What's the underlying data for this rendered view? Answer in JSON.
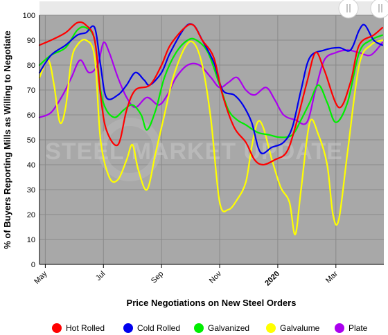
{
  "chart_data": {
    "type": "line",
    "title": "",
    "xlabel": "Price Negotiations on New Steel Orders",
    "ylabel": "% of Buyers Reporting Mills as Willing to Negotiate",
    "ylim": [
      0,
      100
    ],
    "yticks": [
      0,
      10,
      20,
      30,
      40,
      50,
      60,
      70,
      80,
      90,
      100
    ],
    "xlim": [
      -0.2,
      11.65
    ],
    "xticks": [
      {
        "x": 0,
        "label": "May"
      },
      {
        "x": 2,
        "label": "Jul"
      },
      {
        "x": 4,
        "label": "Sep"
      },
      {
        "x": 6,
        "label": "Nov"
      },
      {
        "x": 8,
        "label": "2020"
      },
      {
        "x": 10,
        "label": "Mar"
      }
    ],
    "grid": true,
    "legend_position": "bottom",
    "watermark": "STEEL MARKET UPDATE",
    "series": [
      {
        "name": "Hot Rolled",
        "color": "#ff0000",
        "points": [
          [
            -0.2,
            88
          ],
          [
            0.2,
            90
          ],
          [
            0.7,
            93
          ],
          [
            1.1,
            97
          ],
          [
            1.4,
            96
          ],
          [
            1.7,
            90
          ],
          [
            1.9,
            68
          ],
          [
            2.1,
            54
          ],
          [
            2.5,
            48
          ],
          [
            2.8,
            62
          ],
          [
            3.1,
            70
          ],
          [
            3.6,
            72
          ],
          [
            4.0,
            80
          ],
          [
            4.3,
            88
          ],
          [
            4.8,
            95
          ],
          [
            5.1,
            96
          ],
          [
            5.4,
            90
          ],
          [
            5.8,
            83
          ],
          [
            6.1,
            68
          ],
          [
            6.5,
            55
          ],
          [
            6.9,
            49
          ],
          [
            7.2,
            42
          ],
          [
            7.5,
            40
          ],
          [
            7.9,
            42
          ],
          [
            8.3,
            45
          ],
          [
            8.6,
            55
          ],
          [
            9.0,
            73
          ],
          [
            9.3,
            85
          ],
          [
            9.6,
            78
          ],
          [
            10.1,
            63
          ],
          [
            10.5,
            73
          ],
          [
            10.8,
            88
          ],
          [
            11.3,
            92
          ],
          [
            11.6,
            95
          ]
        ]
      },
      {
        "name": "Cold Rolled",
        "color": "#0000ee",
        "points": [
          [
            -0.2,
            77
          ],
          [
            0.2,
            84
          ],
          [
            0.7,
            88
          ],
          [
            1.1,
            92
          ],
          [
            1.4,
            93
          ],
          [
            1.7,
            95
          ],
          [
            1.9,
            80
          ],
          [
            2.1,
            67
          ],
          [
            2.5,
            68
          ],
          [
            2.8,
            72
          ],
          [
            3.1,
            77
          ],
          [
            3.4,
            74
          ],
          [
            3.6,
            72
          ],
          [
            4.0,
            77
          ],
          [
            4.3,
            85
          ],
          [
            4.8,
            95
          ],
          [
            5.1,
            96
          ],
          [
            5.4,
            90
          ],
          [
            5.8,
            81
          ],
          [
            6.1,
            70
          ],
          [
            6.5,
            68
          ],
          [
            6.8,
            64
          ],
          [
            7.1,
            57
          ],
          [
            7.4,
            45
          ],
          [
            7.8,
            47
          ],
          [
            8.2,
            49
          ],
          [
            8.5,
            55
          ],
          [
            8.8,
            70
          ],
          [
            9.1,
            83
          ],
          [
            9.6,
            86
          ],
          [
            10.1,
            87
          ],
          [
            10.5,
            86
          ],
          [
            10.8,
            94
          ],
          [
            11.0,
            96
          ],
          [
            11.3,
            90
          ],
          [
            11.6,
            88
          ]
        ]
      },
      {
        "name": "Galvanized",
        "color": "#00ee00",
        "points": [
          [
            -0.2,
            80
          ],
          [
            0.2,
            84
          ],
          [
            0.7,
            87
          ],
          [
            1.1,
            94
          ],
          [
            1.4,
            95
          ],
          [
            1.7,
            90
          ],
          [
            1.9,
            70
          ],
          [
            2.1,
            62
          ],
          [
            2.4,
            59
          ],
          [
            2.7,
            62
          ],
          [
            3.0,
            64
          ],
          [
            3.3,
            60
          ],
          [
            3.5,
            54
          ],
          [
            3.8,
            62
          ],
          [
            4.1,
            75
          ],
          [
            4.5,
            85
          ],
          [
            4.9,
            90
          ],
          [
            5.2,
            90
          ],
          [
            5.6,
            85
          ],
          [
            6.0,
            72
          ],
          [
            6.3,
            62
          ],
          [
            6.6,
            58
          ],
          [
            6.9,
            56
          ],
          [
            7.3,
            53
          ],
          [
            7.7,
            52
          ],
          [
            8.1,
            51
          ],
          [
            8.5,
            52
          ],
          [
            8.8,
            58
          ],
          [
            9.1,
            65
          ],
          [
            9.4,
            72
          ],
          [
            9.7,
            65
          ],
          [
            10.0,
            57
          ],
          [
            10.4,
            65
          ],
          [
            10.8,
            85
          ],
          [
            11.2,
            90
          ],
          [
            11.6,
            92
          ]
        ]
      },
      {
        "name": "Galvalume",
        "color": "#ffff00",
        "points": [
          [
            -0.2,
            75
          ],
          [
            0.1,
            82
          ],
          [
            0.3,
            72
          ],
          [
            0.5,
            57
          ],
          [
            0.7,
            63
          ],
          [
            0.9,
            82
          ],
          [
            1.1,
            88
          ],
          [
            1.4,
            90
          ],
          [
            1.7,
            83
          ],
          [
            1.9,
            50
          ],
          [
            2.2,
            35
          ],
          [
            2.5,
            34
          ],
          [
            2.8,
            42
          ],
          [
            3.0,
            48
          ],
          [
            3.2,
            38
          ],
          [
            3.5,
            30
          ],
          [
            3.8,
            45
          ],
          [
            4.1,
            60
          ],
          [
            4.4,
            75
          ],
          [
            4.8,
            87
          ],
          [
            5.1,
            89
          ],
          [
            5.4,
            80
          ],
          [
            5.7,
            58
          ],
          [
            6.0,
            25
          ],
          [
            6.3,
            22
          ],
          [
            6.6,
            26
          ],
          [
            6.9,
            33
          ],
          [
            7.1,
            47
          ],
          [
            7.3,
            57
          ],
          [
            7.5,
            55
          ],
          [
            7.8,
            42
          ],
          [
            8.1,
            31
          ],
          [
            8.4,
            25
          ],
          [
            8.6,
            12
          ],
          [
            8.8,
            30
          ],
          [
            9.1,
            57
          ],
          [
            9.4,
            52
          ],
          [
            9.7,
            40
          ],
          [
            9.9,
            20
          ],
          [
            10.1,
            18
          ],
          [
            10.4,
            45
          ],
          [
            10.8,
            80
          ],
          [
            11.2,
            88
          ],
          [
            11.6,
            90
          ]
        ]
      },
      {
        "name": "Plate",
        "color": "#aa00ee",
        "points": [
          [
            -0.2,
            59
          ],
          [
            0.2,
            61
          ],
          [
            0.6,
            68
          ],
          [
            0.9,
            75
          ],
          [
            1.2,
            82
          ],
          [
            1.5,
            77
          ],
          [
            1.8,
            80
          ],
          [
            2.0,
            89
          ],
          [
            2.2,
            85
          ],
          [
            2.5,
            75
          ],
          [
            2.8,
            67
          ],
          [
            3.1,
            63
          ],
          [
            3.5,
            67
          ],
          [
            3.9,
            64
          ],
          [
            4.2,
            68
          ],
          [
            4.5,
            75
          ],
          [
            4.9,
            80
          ],
          [
            5.3,
            80
          ],
          [
            5.7,
            75
          ],
          [
            6.0,
            71
          ],
          [
            6.3,
            73
          ],
          [
            6.6,
            75
          ],
          [
            6.9,
            70
          ],
          [
            7.2,
            68
          ],
          [
            7.6,
            71
          ],
          [
            7.9,
            66
          ],
          [
            8.2,
            60
          ],
          [
            8.6,
            58
          ],
          [
            9.0,
            57
          ],
          [
            9.3,
            70
          ],
          [
            9.6,
            82
          ],
          [
            10.0,
            85
          ],
          [
            10.4,
            86
          ],
          [
            10.8,
            85
          ],
          [
            11.2,
            84
          ],
          [
            11.6,
            89
          ]
        ]
      }
    ]
  },
  "legend": {
    "items": [
      "Hot Rolled",
      "Cold Rolled",
      "Galvanized",
      "Galvalume",
      "Plate"
    ]
  }
}
